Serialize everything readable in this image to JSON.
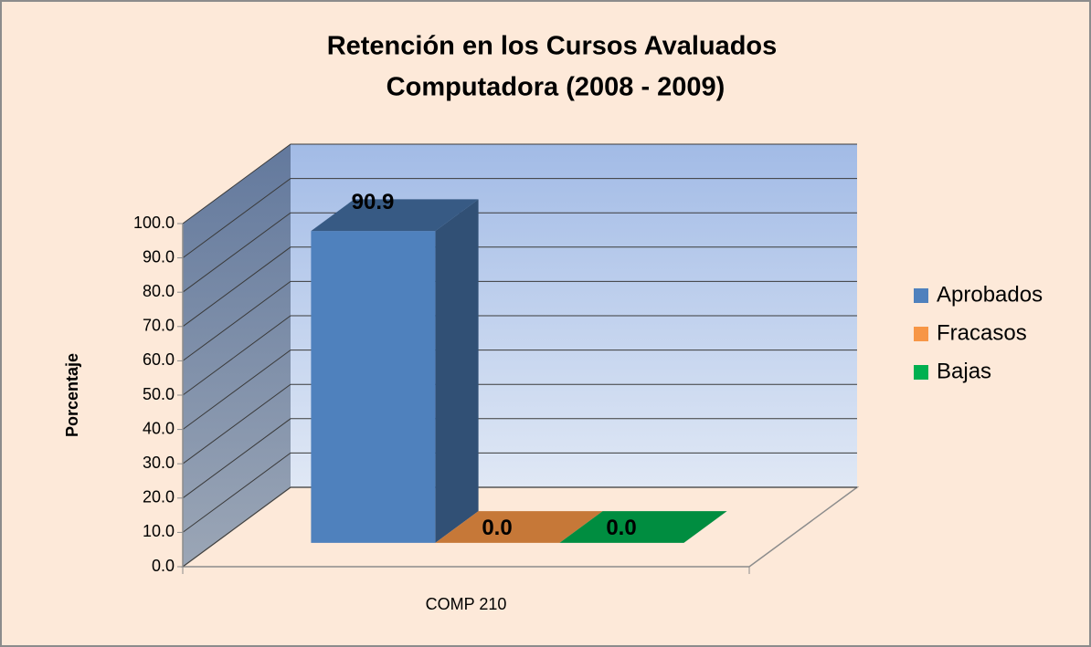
{
  "chart_data": {
    "type": "bar3d",
    "title": "Retención en los Cursos  Avaluados",
    "subtitle": "Computadora (2008 - 2009)",
    "y_label": "Porcentaje",
    "categories": [
      "COMP 210"
    ],
    "series": [
      {
        "name": "Aprobados",
        "color": "#4f81bd",
        "values": [
          90.9
        ],
        "value_labels": [
          "90.9"
        ]
      },
      {
        "name": "Fracasos",
        "color": "#f79646",
        "values": [
          0
        ],
        "value_labels": [
          "0.0"
        ]
      },
      {
        "name": "Bajas",
        "color": "#00b050",
        "values": [
          0
        ],
        "value_labels": [
          "0.0"
        ]
      }
    ],
    "ylim": [
      0,
      100
    ],
    "yticks": [
      {
        "value": 0,
        "label": "0.0"
      },
      {
        "value": 10,
        "label": "10.0"
      },
      {
        "value": 20,
        "label": "20.0"
      },
      {
        "value": 30,
        "label": "30.0"
      },
      {
        "value": 40,
        "label": "40.0"
      },
      {
        "value": 50,
        "label": "50.0"
      },
      {
        "value": 60,
        "label": "60.0"
      },
      {
        "value": 70,
        "label": "70.0"
      },
      {
        "value": 80,
        "label": "80.0"
      },
      {
        "value": 90,
        "label": "90.0"
      },
      {
        "value": 100,
        "label": "100.0"
      }
    ],
    "grid": true,
    "legend": "right"
  }
}
